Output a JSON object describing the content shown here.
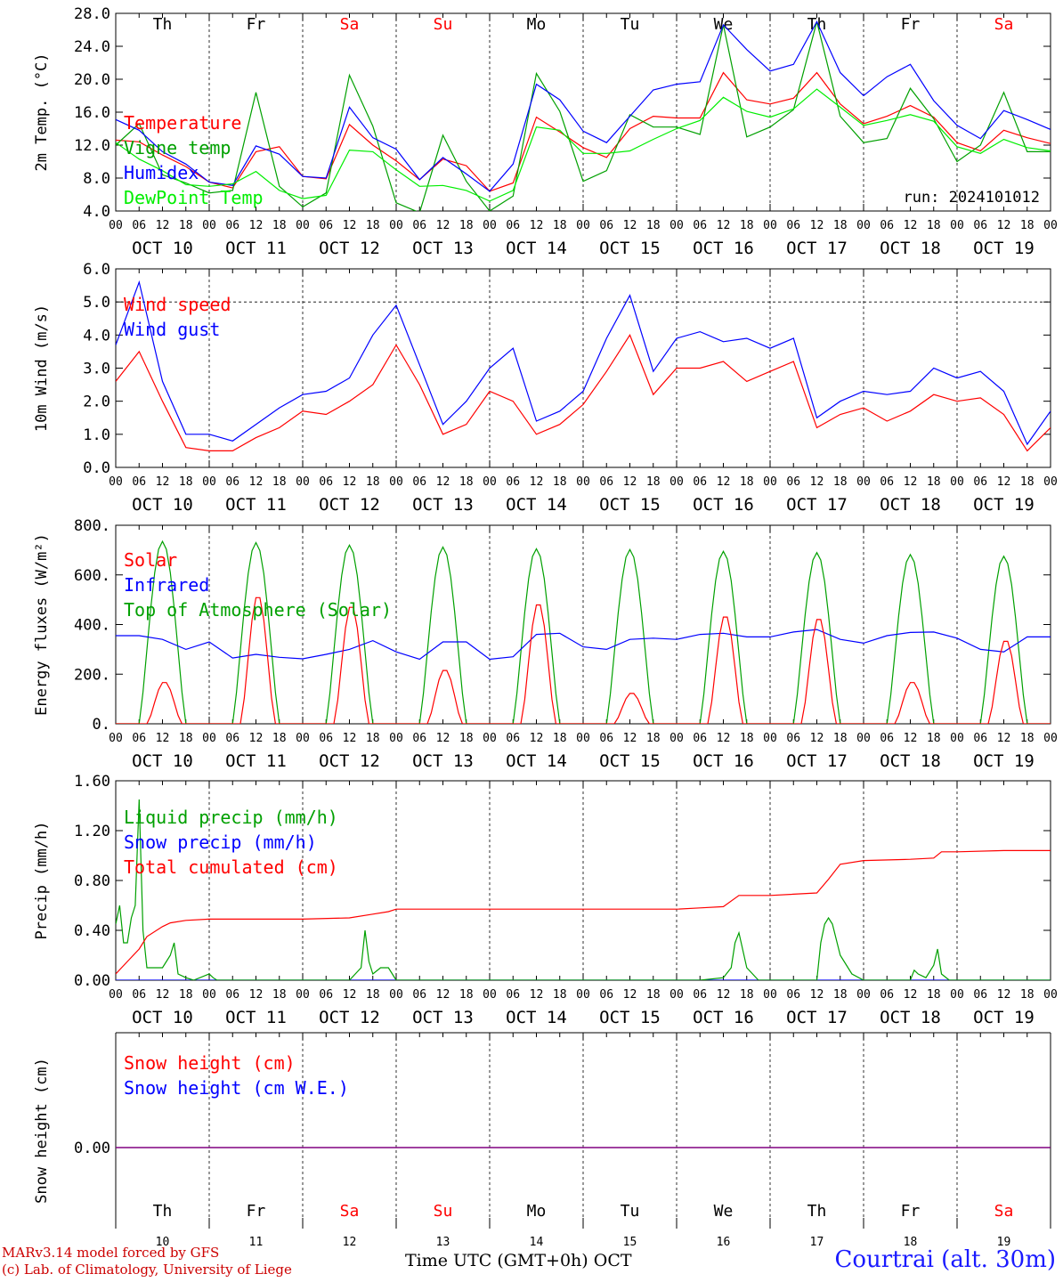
{
  "days": [
    "Th",
    "Fr",
    "Sa",
    "Su",
    "Mo",
    "Tu",
    "We",
    "Th",
    "Fr",
    "Sa"
  ],
  "weekend_days": [
    "Sa",
    "Su"
  ],
  "dates": [
    "OCT 10",
    "OCT 11",
    "OCT 12",
    "OCT 13",
    "OCT 14",
    "OCT 15",
    "OCT 16",
    "OCT 17",
    "OCT 18",
    "OCT 19"
  ],
  "bottom_dates": [
    "10",
    "11",
    "12",
    "13",
    "14",
    "15",
    "16",
    "17",
    "18",
    "19"
  ],
  "hour_ticks": [
    "00",
    "06",
    "12",
    "18"
  ],
  "run_label": "run: 2024101012",
  "x_title": "Time UTC (GMT+0h)",
  "x_month": "OCT",
  "credits": [
    "MARv3.14 model forced by GFS",
    "(c) Lab. of Climatology, University of Liege"
  ],
  "station": "Courtrai (alt. 30m)",
  "chart_data": [
    {
      "type": "line",
      "ylabel": "2m Temp. (°C)",
      "ylim": [
        4,
        28
      ],
      "yticks": [
        "4.0",
        "8.0",
        "12.0",
        "16.0",
        "20.0",
        "24.0",
        "28.0"
      ],
      "ytick_values": [
        4,
        8,
        12,
        16,
        20,
        24,
        28
      ],
      "x_hours": [
        0,
        6,
        12,
        18,
        24,
        30,
        36,
        42,
        48,
        54,
        60,
        66,
        72,
        78,
        84,
        90,
        96,
        102,
        108,
        114,
        120,
        126,
        132,
        138,
        144,
        150,
        156,
        162,
        168,
        174,
        180,
        186,
        192,
        198,
        204,
        210,
        216,
        222,
        228,
        234,
        240
      ],
      "series": [
        {
          "name": "Temperature",
          "color": "#ff0000",
          "values": [
            12.6,
            12.4,
            10.8,
            9.4,
            7.5,
            6.8,
            11.2,
            11.8,
            8.2,
            7.9,
            14.5,
            12.0,
            10.1,
            7.8,
            10.3,
            9.5,
            6.4,
            7.4,
            15.4,
            13.6,
            11.7,
            10.5,
            14.0,
            15.5,
            15.3,
            15.3,
            20.8,
            17.5,
            17.0,
            17.7,
            20.8,
            17.0,
            14.6,
            15.5,
            16.8,
            15.4,
            12.3,
            11.3,
            13.8,
            12.9,
            12.2
          ]
        },
        {
          "name": "Vigne temp",
          "color": "#00a000",
          "values": [
            12.0,
            14.6,
            8.4,
            7.4,
            6.2,
            6.5,
            18.4,
            7.0,
            4.5,
            6.2,
            20.5,
            14.3,
            5.0,
            3.8,
            13.2,
            7.6,
            4.0,
            5.8,
            20.7,
            16.1,
            7.6,
            8.9,
            15.7,
            14.2,
            14.2,
            13.3,
            26.6,
            13.0,
            14.2,
            16.3,
            27.0,
            15.5,
            12.3,
            12.8,
            18.9,
            15.2,
            10.0,
            12.0,
            18.4,
            11.2,
            11.2
          ]
        },
        {
          "name": "Humidex",
          "color": "#0000ff",
          "values": [
            15.1,
            13.8,
            11.2,
            9.7,
            7.5,
            7.1,
            11.9,
            10.9,
            8.2,
            8.0,
            16.6,
            12.9,
            11.5,
            7.8,
            10.5,
            8.5,
            6.4,
            9.7,
            19.4,
            17.5,
            13.7,
            12.3,
            15.5,
            18.7,
            19.4,
            19.7,
            26.6,
            23.6,
            21.0,
            21.8,
            27.0,
            20.8,
            18.0,
            20.3,
            21.8,
            17.4,
            14.4,
            12.8,
            16.2,
            15.1,
            13.9
          ]
        },
        {
          "name": "DewPoint Temp",
          "color": "#00ee00",
          "values": [
            12.3,
            10.3,
            8.9,
            7.2,
            7.0,
            7.3,
            8.8,
            6.5,
            5.5,
            5.9,
            11.4,
            11.2,
            9.0,
            7.0,
            7.1,
            6.5,
            5.2,
            6.5,
            14.2,
            13.8,
            11.0,
            11.0,
            11.3,
            12.7,
            14.0,
            15.0,
            17.8,
            16.1,
            15.4,
            16.4,
            18.8,
            16.6,
            14.4,
            15.0,
            15.7,
            14.9,
            11.8,
            11.0,
            12.7,
            11.7,
            11.3
          ]
        }
      ]
    },
    {
      "type": "line",
      "ylabel": "10m Wind (m/s)",
      "ylim": [
        0,
        6
      ],
      "yticks": [
        "0.0",
        "1.0",
        "2.0",
        "3.0",
        "4.0",
        "5.0",
        "6.0"
      ],
      "ytick_values": [
        0,
        1,
        2,
        3,
        4,
        5,
        6
      ],
      "ref_line": 5,
      "x_hours": [
        0,
        6,
        12,
        18,
        24,
        30,
        36,
        42,
        48,
        54,
        60,
        66,
        72,
        78,
        84,
        90,
        96,
        102,
        108,
        114,
        120,
        126,
        132,
        138,
        144,
        150,
        156,
        162,
        168,
        174,
        180,
        186,
        192,
        198,
        204,
        210,
        216,
        222,
        228,
        234,
        240
      ],
      "series": [
        {
          "name": "Wind speed",
          "color": "#ff0000",
          "values": [
            2.6,
            3.5,
            2.0,
            0.6,
            0.5,
            0.5,
            0.9,
            1.2,
            1.7,
            1.6,
            2.0,
            2.5,
            3.7,
            2.5,
            1.0,
            1.3,
            2.3,
            2.0,
            1.0,
            1.3,
            1.9,
            2.9,
            4.0,
            2.2,
            3.0,
            3.0,
            3.2,
            2.6,
            2.9,
            3.2,
            1.2,
            1.6,
            1.8,
            1.4,
            1.7,
            2.2,
            2.0,
            2.1,
            1.6,
            0.5,
            1.2
          ]
        },
        {
          "name": "Wind gust",
          "color": "#0000ff",
          "values": [
            3.7,
            5.6,
            2.6,
            1.0,
            1.0,
            0.8,
            1.3,
            1.8,
            2.2,
            2.3,
            2.7,
            4.0,
            4.9,
            3.1,
            1.3,
            2.0,
            3.0,
            3.6,
            1.4,
            1.7,
            2.3,
            3.9,
            5.2,
            2.9,
            3.9,
            4.1,
            3.8,
            3.9,
            3.6,
            3.9,
            1.5,
            2.0,
            2.3,
            2.2,
            2.3,
            3.0,
            2.7,
            2.9,
            2.3,
            0.7,
            1.7
          ]
        }
      ]
    },
    {
      "type": "line",
      "ylabel": "Energy fluxes (W/m²)",
      "ylim": [
        0,
        800
      ],
      "yticks": [
        "0.",
        "200.",
        "400.",
        "600.",
        "800."
      ],
      "ytick_values": [
        0,
        200,
        400,
        600,
        800
      ],
      "toa_peaks": [
        735,
        730,
        720,
        712,
        705,
        702,
        695,
        690,
        682,
        675
      ],
      "solar_peaks": [
        170,
        520,
        480,
        220,
        490,
        125,
        440,
        430,
        170,
        340
      ],
      "infrared": {
        "x_hours": [
          0,
          6,
          12,
          18,
          24,
          30,
          36,
          42,
          48,
          54,
          60,
          66,
          72,
          78,
          84,
          90,
          96,
          102,
          108,
          114,
          120,
          126,
          132,
          138,
          144,
          150,
          156,
          162,
          168,
          174,
          180,
          186,
          192,
          198,
          204,
          210,
          216,
          222,
          228,
          234,
          240
        ],
        "values": [
          355,
          355,
          340,
          300,
          330,
          265,
          280,
          268,
          262,
          280,
          300,
          335,
          290,
          260,
          330,
          330,
          260,
          270,
          360,
          365,
          310,
          300,
          340,
          345,
          340,
          360,
          365,
          350,
          350,
          370,
          380,
          340,
          325,
          355,
          368,
          370,
          345,
          300,
          290,
          350,
          350
        ]
      },
      "series": [
        {
          "name": "Solar",
          "color": "#ff0000"
        },
        {
          "name": "Infrared",
          "color": "#0000ff"
        },
        {
          "name": "Top of Atmosphere (Solar)",
          "color": "#00a000"
        }
      ]
    },
    {
      "type": "line",
      "ylabel": "Precip (mm/h)",
      "ylim": [
        0,
        1.6
      ],
      "yticks": [
        "0.00",
        "0.40",
        "0.80",
        "1.20",
        "1.60"
      ],
      "ytick_values": [
        0,
        0.4,
        0.8,
        1.2,
        1.6
      ],
      "liquid": {
        "x_hours": [
          0,
          1,
          2,
          3,
          4,
          5,
          6,
          7,
          8,
          9,
          10,
          12,
          14,
          15,
          16,
          18,
          20,
          24,
          25,
          26,
          30,
          60,
          63,
          64,
          65,
          66,
          68,
          70,
          72,
          96,
          144,
          150,
          156,
          158,
          159,
          160,
          162,
          165,
          180,
          181,
          182,
          183,
          184,
          186,
          189,
          192,
          204,
          205,
          206,
          208,
          210,
          211,
          212,
          214,
          240
        ],
        "values": [
          0.45,
          0.6,
          0.3,
          0.3,
          0.5,
          0.6,
          1.45,
          0.4,
          0.1,
          0.1,
          0.1,
          0.1,
          0.2,
          0.3,
          0.05,
          0.02,
          0.0,
          0.05,
          0.02,
          0.0,
          0.0,
          0.0,
          0.1,
          0.4,
          0.15,
          0.05,
          0.1,
          0.1,
          0.0,
          0.0,
          0.0,
          0.0,
          0.02,
          0.1,
          0.3,
          0.38,
          0.1,
          0.0,
          0.0,
          0.3,
          0.45,
          0.5,
          0.45,
          0.2,
          0.05,
          0.0,
          0.0,
          0.08,
          0.05,
          0.02,
          0.12,
          0.25,
          0.05,
          0.0,
          0.0
        ]
      },
      "snow": {
        "x_hours": [
          0,
          240
        ],
        "values": [
          0,
          0
        ]
      },
      "cumulated": {
        "x_hours": [
          0,
          3,
          6,
          8,
          12,
          14,
          18,
          24,
          48,
          60,
          66,
          70,
          72,
          96,
          144,
          150,
          156,
          160,
          168,
          180,
          183,
          186,
          192,
          204,
          210,
          212,
          216,
          228,
          240
        ],
        "values": [
          0.05,
          0.15,
          0.25,
          0.35,
          0.43,
          0.46,
          0.48,
          0.49,
          0.49,
          0.5,
          0.53,
          0.55,
          0.57,
          0.57,
          0.57,
          0.58,
          0.59,
          0.68,
          0.68,
          0.7,
          0.81,
          0.93,
          0.96,
          0.97,
          0.98,
          1.03,
          1.03,
          1.04,
          1.04
        ]
      },
      "series": [
        {
          "name": "Liquid precip (mm/h)",
          "color": "#00a000"
        },
        {
          "name": "Snow precip (mm/h)",
          "color": "#0000ff"
        },
        {
          "name": "Total cumulated (cm)",
          "color": "#ff0000"
        }
      ]
    },
    {
      "type": "line",
      "ylabel": "Snow height (cm)",
      "ylim": [
        -1,
        1
      ],
      "yticks": [
        "0.00"
      ],
      "ytick_values": [
        0
      ],
      "x_hours": [
        0,
        240
      ],
      "series": [
        {
          "name": "Snow height (cm)",
          "color": "#ff0000",
          "values": [
            0,
            0
          ]
        },
        {
          "name": "Snow height (cm W.E.)",
          "color": "#0000ff",
          "values": [
            0,
            0
          ]
        }
      ],
      "plotted_color": "#800080"
    }
  ]
}
